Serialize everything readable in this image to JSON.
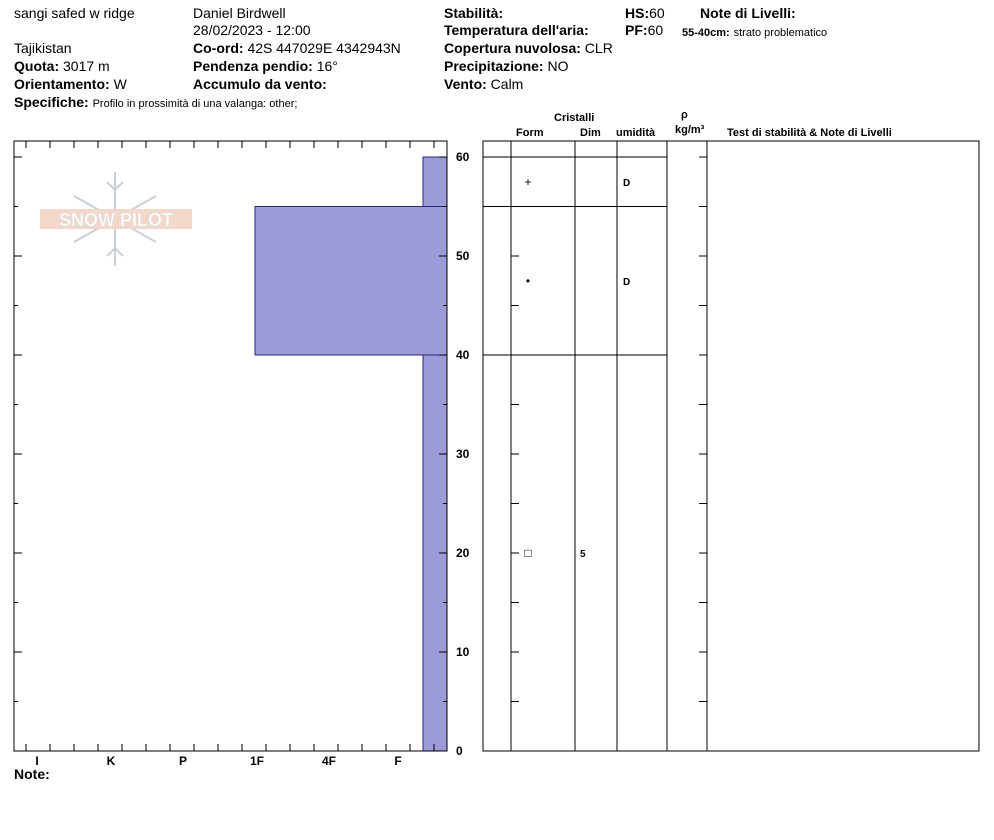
{
  "header": {
    "location": "sangi safed w ridge",
    "region": "Tajikistan",
    "observer": "Daniel Birdwell",
    "datetime": "28/02/2023 - 12:00",
    "elevation_label": "Quota:",
    "elevation_value": "3017 m",
    "aspect_label": "Orientamento:",
    "aspect_value": "W",
    "specifics_label": "Specifiche:",
    "specifics_value": "Profilo in prossimità di una valanga: other;",
    "coord_label": "Co-ord:",
    "coord_value": "42S 447029E 4342943N",
    "slope_label": "Pendenza pendio:",
    "slope_value": "16°",
    "wind_loading_label": "Accumulo da vento:",
    "wind_loading_value": "",
    "stability_label": "Stabilità:",
    "stability_value": "",
    "air_temp_label": "Temperatura dell'aria:",
    "air_temp_value": "",
    "cloud_label": "Copertura nuvolosa:",
    "cloud_value": "CLR",
    "precip_label": "Precipitazione:",
    "precip_value": "NO",
    "wind_label": "Vento:",
    "wind_value": "Calm",
    "hs_label": "HS:",
    "hs_value": "60",
    "pf_label": "PF:",
    "pf_value": "60",
    "layer_notes_label": "Note di Livelli:",
    "layer_note_range": "55-40cm:",
    "layer_note_text": "strato problematico"
  },
  "logo_text": "SNOW PILOT",
  "hardness_axis": [
    "I",
    "K",
    "P",
    "1F",
    "4F",
    "F"
  ],
  "depth_axis": [
    "60",
    "50",
    "40",
    "30",
    "20",
    "10",
    "0"
  ],
  "table_headers": {
    "crystals": "Cristalli",
    "form": "Form",
    "size": "Dim",
    "moisture": "umidità",
    "rho": "ρ",
    "density_unit": "kg/m³",
    "tests": "Test di stabilità & Note di Livelli"
  },
  "footer_note_label": "Note:",
  "profile": {
    "total_depth": 60,
    "fill_color": "#9b9bd7",
    "layers": [
      {
        "top": 60,
        "bottom": 55,
        "hardness": "F-",
        "form_icon": "+",
        "size": "",
        "moisture": "D"
      },
      {
        "top": 55,
        "bottom": 40,
        "hardness": "1F",
        "form_icon": "•",
        "size": "",
        "moisture": "D"
      },
      {
        "top": 40,
        "bottom": 0,
        "hardness": "F-",
        "form_icon": "□",
        "size": "5",
        "moisture": ""
      }
    ]
  }
}
